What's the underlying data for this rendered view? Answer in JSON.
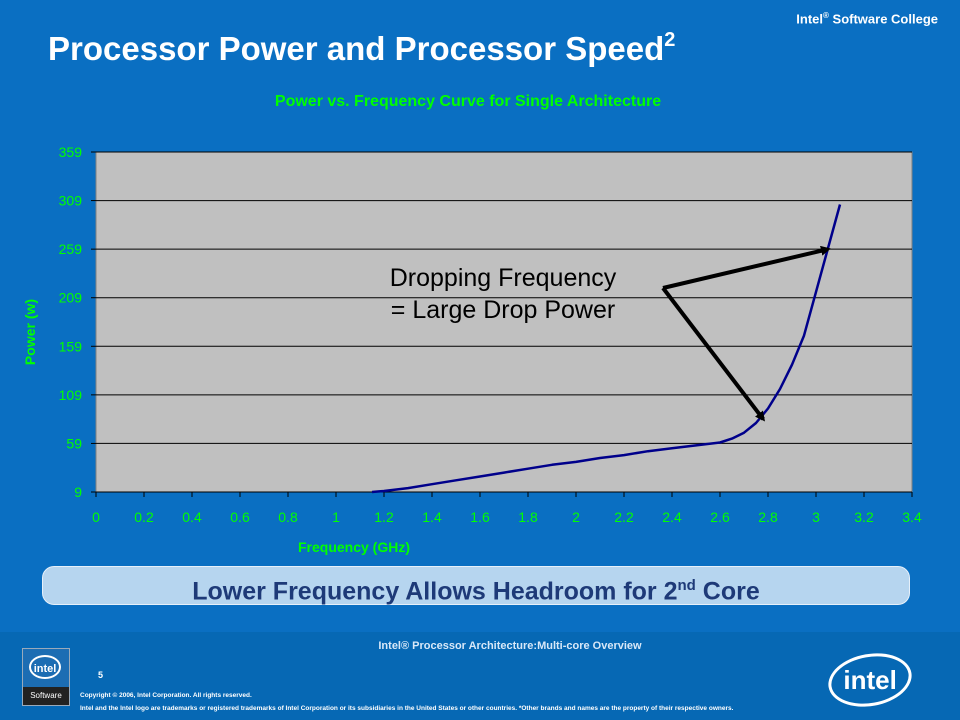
{
  "header": {
    "brand": "Intel",
    "brand_mark": "®",
    "brand_rest": " Software College",
    "title": "Processor Power and Processor Speed",
    "title_superscript": "2"
  },
  "chart_data": {
    "type": "line",
    "title": "Power vs. Frequency Curve for Single Architecture",
    "xlabel": "Frequency (GHz)",
    "ylabel": "Power (w)",
    "xlim": [
      0,
      3.4
    ],
    "ylim": [
      9,
      359
    ],
    "x_ticks": [
      "0",
      "0.2",
      "0.4",
      "0.6",
      "0.8",
      "1",
      "1.2",
      "1.4",
      "1.6",
      "1.8",
      "2",
      "2.2",
      "2.4",
      "2.6",
      "2.8",
      "3",
      "3.2",
      "3.4"
    ],
    "y_ticks": [
      "359",
      "309",
      "259",
      "209",
      "159",
      "109",
      "59",
      "9"
    ],
    "grid": "horizontal",
    "series": [
      {
        "x": [
          1.15,
          1.2,
          1.3,
          1.4,
          1.5,
          1.6,
          1.7,
          1.8,
          1.9,
          2.0,
          2.1,
          2.2,
          2.3,
          2.4,
          2.5,
          2.6,
          2.65,
          2.7,
          2.75,
          2.8,
          2.85,
          2.9,
          2.95,
          3.0,
          3.05,
          3.1
        ],
        "y": [
          9,
          10,
          13,
          17,
          21,
          25,
          29,
          33,
          37,
          40,
          44,
          47,
          51,
          54,
          57,
          60,
          64,
          70,
          80,
          95,
          115,
          140,
          170,
          215,
          260,
          305
        ]
      }
    ],
    "annotation": {
      "line1": "Dropping Frequency",
      "line2": "= Large Drop Power",
      "arrow_targets": [
        {
          "x": 3.05,
          "y": 259
        },
        {
          "x": 2.78,
          "y": 84
        }
      ]
    }
  },
  "banner": {
    "text": "Lower Frequency Allows Headroom for 2",
    "superscript": "nd",
    "text_end": " Core"
  },
  "footer": {
    "title": "Intel® Processor Architecture:Multi-core Overview",
    "page_number": "5",
    "copyright": "Copyright © 2006, Intel Corporation. All rights reserved.",
    "trademark": "Intel and the Intel logo are trademarks or registered trademarks of Intel Corporation or its subsidiaries in the United States or other countries. *Other brands and names are the property of their respective owners.",
    "logo_left_top": "intel",
    "logo_left_bottom": "Software",
    "logo_right": "intel"
  }
}
